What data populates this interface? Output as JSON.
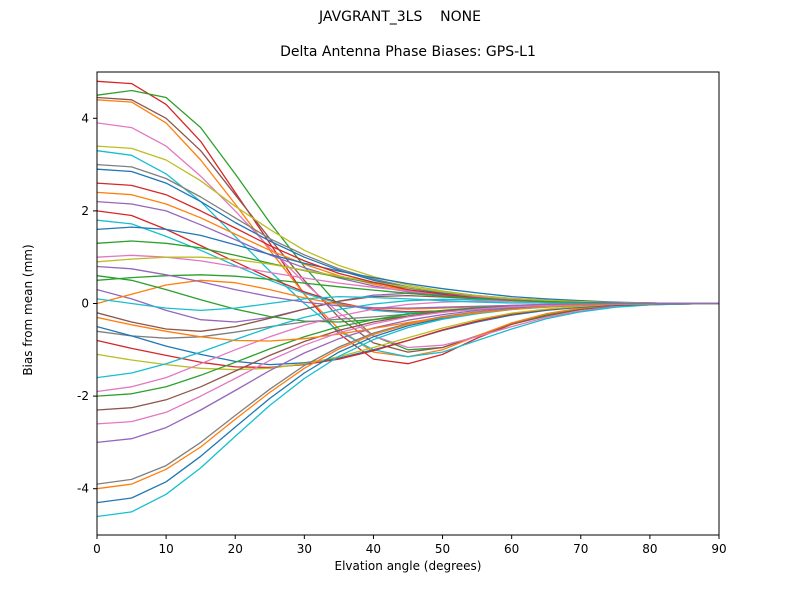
{
  "chart_data": {
    "type": "line",
    "title": "JAVGRANT_3LS    NONE",
    "subtitle": "Delta Antenna Phase Biases: GPS-L1",
    "xlabel": "Elvation angle (degrees)",
    "ylabel": "Bias from mean (mm)",
    "xlim": [
      0,
      90
    ],
    "ylim": [
      -5,
      5
    ],
    "x_ticks": [
      0,
      10,
      20,
      30,
      40,
      50,
      60,
      70,
      80,
      90
    ],
    "y_ticks": [
      -4,
      -2,
      0,
      2,
      4
    ],
    "grid": false,
    "legend": "none",
    "x": [
      0,
      5,
      10,
      15,
      20,
      25,
      30,
      35,
      40,
      45,
      50,
      55,
      60,
      65,
      70,
      75,
      80,
      85,
      90
    ],
    "series": [
      {
        "name": "line-01",
        "color": "#d62728",
        "values": [
          4.8,
          4.75,
          4.3,
          3.5,
          2.4,
          1.3,
          0.2,
          -0.65,
          -1.2,
          -1.3,
          -1.1,
          -0.75,
          -0.45,
          -0.25,
          -0.12,
          -0.05,
          -0.02,
          -0.01,
          0
        ]
      },
      {
        "name": "line-02",
        "color": "#2ca02c",
        "values": [
          4.5,
          4.6,
          4.45,
          3.8,
          2.8,
          1.75,
          0.8,
          -0.05,
          -0.7,
          -1.0,
          -0.95,
          -0.7,
          -0.45,
          -0.25,
          -0.12,
          -0.05,
          -0.02,
          -0.01,
          0
        ]
      },
      {
        "name": "line-03",
        "color": "#8c564b",
        "values": [
          4.45,
          4.4,
          4.0,
          3.3,
          2.35,
          1.4,
          0.5,
          -0.3,
          -0.85,
          -1.05,
          -0.95,
          -0.7,
          -0.45,
          -0.27,
          -0.13,
          -0.06,
          -0.02,
          -0.01,
          0
        ]
      },
      {
        "name": "line-04",
        "color": "#ff7f0e",
        "values": [
          4.4,
          4.35,
          3.9,
          3.1,
          2.15,
          1.15,
          0.2,
          -0.55,
          -1.05,
          -1.15,
          -1.0,
          -0.7,
          -0.42,
          -0.22,
          -0.1,
          -0.04,
          -0.01,
          0,
          0
        ]
      },
      {
        "name": "line-05",
        "color": "#e377c2",
        "values": [
          3.9,
          3.8,
          3.4,
          2.75,
          2.0,
          1.2,
          0.45,
          -0.2,
          -0.7,
          -0.95,
          -0.9,
          -0.72,
          -0.5,
          -0.3,
          -0.16,
          -0.07,
          -0.03,
          -0.01,
          0
        ]
      },
      {
        "name": "line-06",
        "color": "#17becf",
        "values": [
          3.3,
          3.2,
          2.8,
          2.2,
          1.45,
          0.7,
          0.0,
          -0.6,
          -1.0,
          -1.15,
          -1.05,
          -0.8,
          -0.55,
          -0.33,
          -0.18,
          -0.08,
          -0.03,
          -0.01,
          0
        ]
      },
      {
        "name": "line-07",
        "color": "#bcbd22",
        "values": [
          3.4,
          3.35,
          3.1,
          2.65,
          2.1,
          1.6,
          1.15,
          0.82,
          0.58,
          0.4,
          0.27,
          0.17,
          0.1,
          0.06,
          0.03,
          0.02,
          0.01,
          0,
          0
        ]
      },
      {
        "name": "line-08",
        "color": "#7f7f7f",
        "values": [
          3.0,
          2.95,
          2.7,
          2.3,
          1.85,
          1.4,
          1.05,
          0.75,
          0.53,
          0.36,
          0.24,
          0.15,
          0.09,
          0.05,
          0.03,
          0.01,
          0.01,
          0,
          0
        ]
      },
      {
        "name": "line-09",
        "color": "#1f77b4",
        "values": [
          2.9,
          2.85,
          2.6,
          2.2,
          1.75,
          1.35,
          1.0,
          0.72,
          0.5,
          0.34,
          0.22,
          0.14,
          0.08,
          0.05,
          0.02,
          0.01,
          0,
          0,
          0
        ]
      },
      {
        "name": "line-10",
        "color": "#ff7f0e",
        "values": [
          2.4,
          2.35,
          2.15,
          1.85,
          1.5,
          1.15,
          0.85,
          0.6,
          0.42,
          0.28,
          0.18,
          0.11,
          0.07,
          0.04,
          0.02,
          0.01,
          0,
          0,
          0
        ]
      },
      {
        "name": "line-11",
        "color": "#9467bd",
        "values": [
          2.2,
          2.15,
          2.0,
          1.7,
          1.38,
          1.05,
          0.77,
          0.55,
          0.38,
          0.25,
          0.16,
          0.1,
          0.06,
          0.03,
          0.02,
          0.01,
          0,
          0,
          0
        ]
      },
      {
        "name": "line-12",
        "color": "#d62728",
        "values": [
          2.0,
          1.9,
          1.6,
          1.25,
          0.9,
          0.55,
          0.25,
          0.02,
          -0.13,
          -0.18,
          -0.16,
          -0.12,
          -0.08,
          -0.05,
          -0.02,
          -0.01,
          0,
          0,
          0
        ]
      },
      {
        "name": "line-13",
        "color": "#17becf",
        "values": [
          1.8,
          1.72,
          1.45,
          1.15,
          0.82,
          0.5,
          0.22,
          0.0,
          -0.15,
          -0.2,
          -0.18,
          -0.13,
          -0.08,
          -0.04,
          -0.02,
          -0.01,
          0,
          0,
          0
        ]
      },
      {
        "name": "line-14",
        "color": "#1f77b4",
        "values": [
          1.6,
          1.65,
          1.6,
          1.47,
          1.27,
          1.06,
          0.87,
          0.7,
          0.56,
          0.43,
          0.32,
          0.23,
          0.15,
          0.1,
          0.06,
          0.03,
          0.01,
          0,
          0
        ]
      },
      {
        "name": "line-15",
        "color": "#2ca02c",
        "values": [
          1.3,
          1.35,
          1.3,
          1.2,
          1.04,
          0.87,
          0.71,
          0.57,
          0.45,
          0.34,
          0.25,
          0.17,
          0.11,
          0.07,
          0.04,
          0.02,
          0.01,
          0,
          0
        ]
      },
      {
        "name": "line-16",
        "color": "#e377c2",
        "values": [
          1.0,
          1.04,
          1.0,
          0.92,
          0.8,
          0.67,
          0.55,
          0.44,
          0.35,
          0.27,
          0.2,
          0.14,
          0.09,
          0.06,
          0.03,
          0.02,
          0.01,
          0,
          0
        ]
      },
      {
        "name": "line-17",
        "color": "#bcbd22",
        "values": [
          0.9,
          0.96,
          1.0,
          1.0,
          0.95,
          0.85,
          0.72,
          0.59,
          0.46,
          0.35,
          0.25,
          0.17,
          0.11,
          0.07,
          0.04,
          0.02,
          0.01,
          0,
          0
        ]
      },
      {
        "name": "line-18",
        "color": "#9467bd",
        "values": [
          0.3,
          0.1,
          -0.15,
          -0.35,
          -0.4,
          -0.3,
          -0.12,
          0.05,
          0.18,
          0.22,
          0.18,
          0.12,
          0.07,
          0.04,
          0.02,
          0.01,
          0,
          0,
          0
        ]
      },
      {
        "name": "line-19",
        "color": "#8c564b",
        "values": [
          -0.2,
          -0.4,
          -0.55,
          -0.6,
          -0.5,
          -0.32,
          -0.12,
          0.05,
          0.15,
          0.17,
          0.14,
          0.1,
          0.06,
          0.03,
          0.01,
          0,
          0,
          0,
          0
        ]
      },
      {
        "name": "line-20",
        "color": "#ff7f0e",
        "values": [
          0.0,
          0.2,
          0.4,
          0.5,
          0.45,
          0.3,
          0.12,
          -0.02,
          -0.1,
          -0.12,
          -0.1,
          -0.07,
          -0.04,
          -0.02,
          -0.01,
          0,
          0,
          0,
          0
        ]
      },
      {
        "name": "line-21",
        "color": "#2ca02c",
        "values": [
          0.6,
          0.5,
          0.3,
          0.08,
          -0.12,
          -0.28,
          -0.38,
          -0.4,
          -0.35,
          -0.27,
          -0.18,
          -0.11,
          -0.06,
          -0.03,
          -0.01,
          0,
          0,
          0,
          0
        ]
      },
      {
        "name": "line-22",
        "color": "#7f7f7f",
        "values": [
          -0.6,
          -0.7,
          -0.75,
          -0.72,
          -0.62,
          -0.5,
          -0.4,
          -0.34,
          -0.29,
          -0.23,
          -0.17,
          -0.12,
          -0.08,
          -0.05,
          -0.03,
          -0.01,
          0,
          0,
          0
        ]
      },
      {
        "name": "line-23",
        "color": "#1f77b4",
        "values": [
          -0.5,
          -0.7,
          -0.92,
          -1.1,
          -1.25,
          -1.32,
          -1.28,
          -1.18,
          -1.0,
          -0.8,
          -0.58,
          -0.4,
          -0.25,
          -0.15,
          -0.08,
          -0.04,
          -0.02,
          -0.01,
          0
        ]
      },
      {
        "name": "line-24",
        "color": "#d62728",
        "values": [
          -0.8,
          -0.97,
          -1.12,
          -1.27,
          -1.37,
          -1.38,
          -1.32,
          -1.2,
          -1.02,
          -0.8,
          -0.57,
          -0.38,
          -0.23,
          -0.13,
          -0.06,
          -0.03,
          -0.01,
          0,
          0
        ]
      },
      {
        "name": "line-25",
        "color": "#bcbd22",
        "values": [
          -1.1,
          -1.22,
          -1.32,
          -1.4,
          -1.43,
          -1.4,
          -1.3,
          -1.15,
          -0.95,
          -0.74,
          -0.53,
          -0.35,
          -0.21,
          -0.12,
          -0.06,
          -0.02,
          -0.01,
          0,
          0
        ]
      },
      {
        "name": "line-26",
        "color": "#17becf",
        "values": [
          -1.6,
          -1.5,
          -1.3,
          -1.05,
          -0.78,
          -0.52,
          -0.3,
          -0.13,
          -0.01,
          0.06,
          0.09,
          0.08,
          0.06,
          0.04,
          0.02,
          0.01,
          0,
          0,
          0
        ]
      },
      {
        "name": "line-27",
        "color": "#e377c2",
        "values": [
          -1.9,
          -1.8,
          -1.6,
          -1.3,
          -1.0,
          -0.72,
          -0.47,
          -0.27,
          -0.12,
          -0.02,
          0.03,
          0.05,
          0.04,
          0.03,
          0.01,
          0.01,
          0,
          0,
          0
        ]
      },
      {
        "name": "line-28",
        "color": "#2ca02c",
        "values": [
          -2.0,
          -1.95,
          -1.8,
          -1.55,
          -1.27,
          -0.98,
          -0.72,
          -0.5,
          -0.35,
          -0.23,
          -0.15,
          -0.09,
          -0.05,
          -0.03,
          -0.02,
          -0.01,
          0,
          0,
          0
        ]
      },
      {
        "name": "line-29",
        "color": "#8c564b",
        "values": [
          -2.3,
          -2.25,
          -2.08,
          -1.8,
          -1.46,
          -1.12,
          -0.82,
          -0.58,
          -0.4,
          -0.27,
          -0.17,
          -0.11,
          -0.06,
          -0.04,
          -0.02,
          -0.01,
          0,
          0,
          0
        ]
      },
      {
        "name": "line-30",
        "color": "#9467bd",
        "values": [
          -3.0,
          -2.92,
          -2.68,
          -2.3,
          -1.88,
          -1.45,
          -1.07,
          -0.76,
          -0.53,
          -0.36,
          -0.24,
          -0.15,
          -0.09,
          -0.05,
          -0.03,
          -0.01,
          -0.01,
          0,
          0
        ]
      },
      {
        "name": "line-31",
        "color": "#7f7f7f",
        "values": [
          -3.9,
          -3.8,
          -3.5,
          -3.0,
          -2.42,
          -1.85,
          -1.34,
          -0.94,
          -0.64,
          -0.43,
          -0.28,
          -0.18,
          -0.11,
          -0.06,
          -0.03,
          -0.02,
          -0.01,
          0,
          0
        ]
      },
      {
        "name": "line-32",
        "color": "#ff7f0e",
        "values": [
          -4.0,
          -3.9,
          -3.58,
          -3.1,
          -2.5,
          -1.92,
          -1.4,
          -0.98,
          -0.67,
          -0.45,
          -0.3,
          -0.19,
          -0.12,
          -0.07,
          -0.04,
          -0.02,
          -0.01,
          0,
          0
        ]
      },
      {
        "name": "line-33",
        "color": "#1f77b4",
        "values": [
          -4.3,
          -4.2,
          -3.85,
          -3.3,
          -2.67,
          -2.05,
          -1.5,
          -1.05,
          -0.72,
          -0.48,
          -0.32,
          -0.2,
          -0.12,
          -0.07,
          -0.04,
          -0.02,
          -0.01,
          0,
          0
        ]
      },
      {
        "name": "line-34",
        "color": "#17becf",
        "values": [
          -4.6,
          -4.5,
          -4.12,
          -3.55,
          -2.87,
          -2.2,
          -1.62,
          -1.14,
          -0.78,
          -0.52,
          -0.34,
          -0.22,
          -0.13,
          -0.08,
          -0.04,
          -0.02,
          -0.01,
          0,
          0
        ]
      },
      {
        "name": "line-35",
        "color": "#d62728",
        "values": [
          2.6,
          2.55,
          2.35,
          2.0,
          1.63,
          1.25,
          0.92,
          0.65,
          0.46,
          0.3,
          0.2,
          0.12,
          0.07,
          0.04,
          0.02,
          0.01,
          0,
          0,
          0
        ]
      },
      {
        "name": "line-36",
        "color": "#2ca02c",
        "values": [
          0.5,
          0.56,
          0.6,
          0.62,
          0.59,
          0.52,
          0.44,
          0.36,
          0.29,
          0.22,
          0.16,
          0.11,
          0.07,
          0.04,
          0.02,
          0.01,
          0,
          0,
          0
        ]
      },
      {
        "name": "line-37",
        "color": "#ff7f0e",
        "values": [
          -0.3,
          -0.46,
          -0.6,
          -0.72,
          -0.8,
          -0.81,
          -0.76,
          -0.66,
          -0.54,
          -0.41,
          -0.3,
          -0.2,
          -0.13,
          -0.07,
          -0.04,
          -0.02,
          -0.01,
          0,
          0
        ]
      },
      {
        "name": "line-38",
        "color": "#e377c2",
        "values": [
          -2.6,
          -2.55,
          -2.35,
          -2.0,
          -1.62,
          -1.23,
          -0.9,
          -0.63,
          -0.44,
          -0.29,
          -0.19,
          -0.12,
          -0.07,
          -0.04,
          -0.02,
          -0.01,
          0,
          0,
          0
        ]
      },
      {
        "name": "line-39",
        "color": "#17becf",
        "values": [
          0.1,
          0.0,
          -0.1,
          -0.15,
          -0.1,
          0.0,
          0.1,
          0.15,
          0.13,
          0.1,
          0.06,
          0.03,
          0.01,
          0.01,
          0,
          0,
          0,
          0,
          0
        ]
      },
      {
        "name": "line-40",
        "color": "#9467bd",
        "values": [
          0.8,
          0.75,
          0.62,
          0.47,
          0.3,
          0.15,
          0.03,
          -0.05,
          -0.09,
          -0.1,
          -0.08,
          -0.06,
          -0.04,
          -0.02,
          -0.01,
          0,
          0,
          0,
          0
        ]
      }
    ]
  }
}
